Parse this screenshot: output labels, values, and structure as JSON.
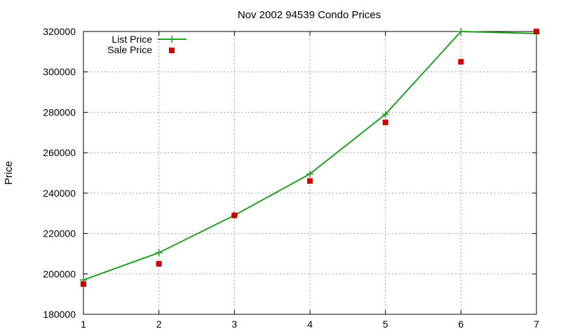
{
  "chart_data": {
    "type": "line",
    "title": "Nov 2002 94539 Condo Prices",
    "xlabel": "",
    "ylabel": "Price",
    "x": [
      1,
      2,
      3,
      4,
      5,
      6,
      7
    ],
    "xlim": [
      1,
      7
    ],
    "ylim": [
      180000,
      320000
    ],
    "xticks": [
      1,
      2,
      3,
      4,
      5,
      6,
      7
    ],
    "yticks": [
      180000,
      200000,
      220000,
      240000,
      260000,
      280000,
      300000,
      320000
    ],
    "grid": true,
    "legend_position": "top-left",
    "series": [
      {
        "name": "List Price",
        "style": "line-with-plus-markers",
        "color": "#1f9f1f",
        "values": [
          197000,
          210500,
          229000,
          249500,
          279000,
          320000,
          319000
        ]
      },
      {
        "name": "Sale Price",
        "style": "square-markers",
        "color": "#cc0000",
        "values": [
          195000,
          205000,
          229000,
          246000,
          275000,
          305000,
          320000
        ]
      }
    ]
  }
}
